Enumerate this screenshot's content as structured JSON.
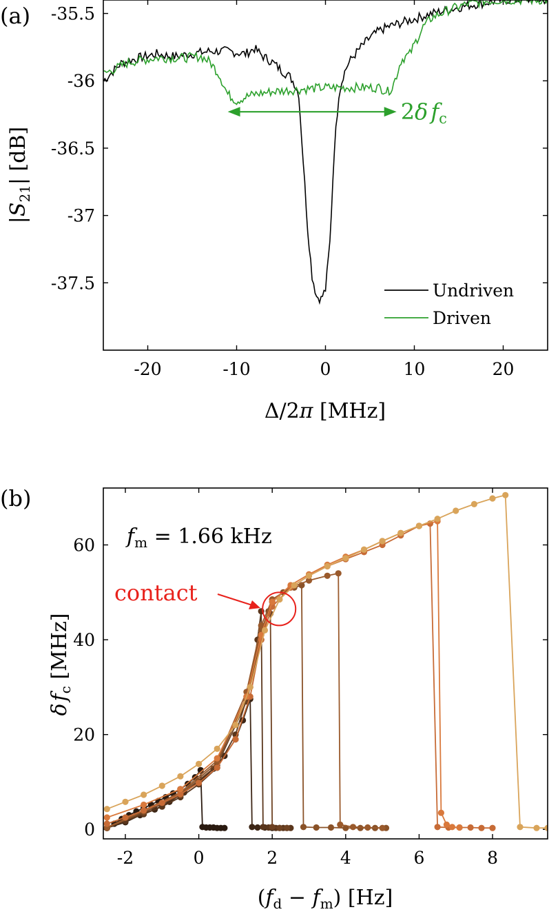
{
  "chart_data": [
    {
      "type": "line",
      "panel_label": "(a)",
      "xlabel_parts": [
        "Δ/2",
        "π",
        " [MHz]"
      ],
      "ylabel_parts": [
        "|",
        "S",
        "21",
        "| [dB]"
      ],
      "xlim": [
        -25,
        25
      ],
      "ylim": [
        -38,
        -35.4
      ],
      "xticks": [
        -20,
        -10,
        0,
        10,
        20
      ],
      "yticks": [
        -37.5,
        -37,
        -36.5,
        -36,
        -35.5
      ],
      "xtick_labels": [
        "-20",
        "-10",
        "0",
        "10",
        "20"
      ],
      "ytick_labels": [
        "-37.5",
        "-37",
        "-36.5",
        "-36",
        "-35.5"
      ],
      "grid": false,
      "legend_position": "bottom-right",
      "series": [
        {
          "name": "Undriven",
          "color": "#000000",
          "x": [
            -25,
            -23,
            -21,
            -19,
            -17,
            -15,
            -13,
            -11,
            -9,
            -8,
            -7,
            -6,
            -5,
            -4,
            -3.5,
            -3,
            -2.5,
            -2,
            -1.5,
            -1,
            -0.5,
            0,
            0.5,
            1,
            1.5,
            2,
            2.5,
            3,
            4,
            5,
            6,
            7,
            8,
            10,
            12,
            14,
            16,
            18,
            20,
            25
          ],
          "y": [
            -36.0,
            -35.87,
            -35.83,
            -35.8,
            -35.82,
            -35.8,
            -35.78,
            -35.78,
            -35.8,
            -35.76,
            -35.82,
            -35.86,
            -35.92,
            -35.97,
            -36.02,
            -36.1,
            -36.6,
            -37.1,
            -37.45,
            -37.6,
            -37.62,
            -37.55,
            -37.2,
            -36.5,
            -36.1,
            -35.96,
            -35.88,
            -35.83,
            -35.75,
            -35.68,
            -35.63,
            -35.6,
            -35.58,
            -35.54,
            -35.5,
            -35.47,
            -35.44,
            -35.42,
            -35.4,
            -35.4
          ]
        },
        {
          "name": "Driven",
          "color": "#2ca02c",
          "x": [
            -25,
            -22,
            -19,
            -16,
            -14,
            -13,
            -12,
            -11,
            -10,
            -9,
            -8,
            -6,
            -4,
            -2,
            0,
            2,
            4,
            6,
            7,
            7.5,
            8,
            8.5,
            9,
            9.5,
            10,
            11,
            12,
            14,
            16,
            18,
            20,
            25
          ],
          "y": [
            -35.95,
            -35.86,
            -35.83,
            -35.83,
            -35.82,
            -35.86,
            -35.95,
            -36.1,
            -36.15,
            -36.12,
            -36.1,
            -36.08,
            -36.07,
            -36.06,
            -36.05,
            -36.05,
            -36.05,
            -36.05,
            -36.08,
            -36.05,
            -35.96,
            -35.85,
            -35.82,
            -35.8,
            -35.73,
            -35.6,
            -35.53,
            -35.47,
            -35.43,
            -35.41,
            -35.4,
            -35.4
          ]
        }
      ],
      "annotation": {
        "text_parts": [
          "2",
          "δ",
          "f",
          "c"
        ],
        "color": "#2ca02c",
        "x_from": -11,
        "x_to": 8,
        "y": -36.23
      }
    },
    {
      "type": "line",
      "panel_label": "(b)",
      "xlabel_parts": [
        "(",
        "f",
        "d",
        " − ",
        "f",
        "m",
        ") [Hz]"
      ],
      "ylabel_parts": [
        "δ",
        "f",
        "c",
        " [MHz]"
      ],
      "xlim": [
        -2.6,
        9.5
      ],
      "ylim": [
        -2,
        72
      ],
      "xticks": [
        -2,
        0,
        2,
        4,
        6,
        8
      ],
      "yticks": [
        0,
        20,
        40,
        60
      ],
      "xtick_labels": [
        "-2",
        "0",
        "2",
        "4",
        "6",
        "8"
      ],
      "ytick_labels": [
        "0",
        "20",
        "40",
        "60"
      ],
      "grid": false,
      "inset_text_parts": [
        "f",
        "m",
        " = 1.66 kHz"
      ],
      "contact_annotation": {
        "text": "contact",
        "color": "#e8211b",
        "x": 1.85,
        "y": 46.5
      },
      "series": [
        {
          "color": "#2a1a10",
          "x": [
            -2.5,
            -2.3,
            -2.1,
            -1.9,
            -1.7,
            -1.5,
            -1.3,
            -1.1,
            -0.9,
            -0.7,
            -0.5,
            -0.3,
            -0.1,
            0.05,
            0.1,
            0.2,
            0.3,
            0.4,
            0.5,
            0.6,
            0.7
          ],
          "y": [
            0.3,
            1.2,
            2.2,
            3.0,
            3.8,
            4.5,
            5.2,
            6.0,
            6.8,
            7.6,
            8.5,
            9.6,
            11,
            12.5,
            0.5,
            0.4,
            0.4,
            0.4,
            0.3,
            0.3,
            0.3
          ]
        },
        {
          "color": "#3d2616",
          "x": [
            -2.5,
            -2.0,
            -1.6,
            -1.2,
            -0.8,
            -0.4,
            0.0,
            0.4,
            0.7,
            1.0,
            1.2,
            1.4,
            1.45,
            1.6,
            1.8,
            2.0,
            2.2,
            2.4
          ],
          "y": [
            0.3,
            1.5,
            3.0,
            4.2,
            5.8,
            7.8,
            10,
            12.8,
            15.5,
            19,
            23,
            27.5,
            0.5,
            0.4,
            0.4,
            0.3,
            0.3,
            0.3
          ]
        },
        {
          "color": "#5a361c",
          "x": [
            -2.5,
            -2.0,
            -1.5,
            -1.0,
            -0.5,
            0.0,
            0.5,
            1.0,
            1.4,
            1.6,
            1.7,
            1.75,
            1.9,
            2.1,
            2.3,
            2.5
          ],
          "y": [
            0.3,
            1.8,
            3.2,
            4.8,
            6.8,
            9.5,
            13,
            20,
            30,
            40,
            46,
            0.5,
            0.4,
            0.3,
            0.3,
            0.3
          ]
        },
        {
          "color": "#6e4222",
          "x": [
            -2.5,
            -1.5,
            -0.5,
            0.5,
            1.3,
            1.7,
            1.9,
            1.95,
            2.0,
            2.2,
            2.4
          ],
          "y": [
            0.3,
            3.5,
            7.2,
            13.5,
            27,
            40,
            46,
            45.5,
            0.5,
            0.3,
            0.3
          ]
        },
        {
          "color": "#8a5228",
          "x": [
            -2.5,
            -1.5,
            -0.5,
            0.5,
            1.3,
            1.7,
            2.0,
            2.3,
            2.6,
            2.8,
            2.85,
            3.2,
            3.6,
            4.0,
            4.4,
            4.8,
            5.1
          ],
          "y": [
            0.3,
            3.8,
            7.5,
            14,
            28,
            42,
            48,
            50,
            51,
            51.5,
            0.5,
            0.4,
            0.4,
            0.3,
            0.3,
            0.3,
            0.3
          ]
        },
        {
          "color": "#9a5a2c",
          "x": [
            -2.5,
            -1.5,
            -0.5,
            0.5,
            1.3,
            1.7,
            2.0,
            2.5,
            3.0,
            3.5,
            3.8,
            3.85,
            4.2,
            4.6,
            5.0
          ],
          "y": [
            0.4,
            4.0,
            7.8,
            14.5,
            29,
            43,
            48.5,
            51,
            52.5,
            53.5,
            54,
            1.0,
            0.5,
            0.4,
            0.3
          ]
        },
        {
          "color": "#c76b36",
          "x": [
            -2.5,
            -2.0,
            -1.5,
            -1.0,
            -0.5,
            0.0,
            0.5,
            1.0,
            1.4,
            1.7,
            2.0,
            2.5,
            3.0,
            3.5,
            4.0,
            4.5,
            5.0,
            5.5,
            6.0,
            6.3,
            6.5,
            6.8,
            7.1,
            7.4,
            7.7,
            8.0
          ],
          "y": [
            1.2,
            2.5,
            4.0,
            5.6,
            7.4,
            9.8,
            13,
            19,
            28,
            40,
            47,
            51,
            53.5,
            55.5,
            57,
            58.5,
            60,
            62,
            64,
            64.5,
            0.5,
            0.4,
            0.4,
            0.4,
            0.3,
            0.3
          ]
        },
        {
          "color": "#d9793c",
          "x": [
            -2.5,
            -1.5,
            -0.5,
            0.5,
            1.3,
            1.7,
            2.0,
            2.5,
            3.0,
            3.5,
            4.0,
            4.5,
            5.0,
            5.5,
            6.0,
            6.5,
            6.6,
            6.75,
            6.9,
            7.1
          ],
          "y": [
            2.5,
            5.2,
            8.5,
            15,
            28,
            41,
            48,
            51.5,
            53.8,
            55.8,
            57.5,
            59,
            60.8,
            62.5,
            64,
            65,
            3.5,
            1.0,
            0.5,
            0.4
          ]
        },
        {
          "color": "#d9a45a",
          "x": [
            -2.5,
            -2.0,
            -1.5,
            -1.0,
            -0.5,
            0.0,
            0.5,
            1.0,
            1.4,
            1.8,
            2.2,
            2.6,
            3.0,
            3.5,
            4.0,
            4.5,
            5.0,
            5.5,
            6.0,
            6.5,
            7.0,
            7.5,
            8.0,
            8.35,
            8.75,
            9.2,
            9.5
          ],
          "y": [
            4.3,
            5.8,
            7.3,
            9.2,
            11.2,
            13.8,
            17,
            22,
            30,
            42,
            48.5,
            51.5,
            53.5,
            55.5,
            57.2,
            59,
            60.8,
            62.5,
            64,
            65.5,
            67.2,
            68.6,
            69.8,
            70.5,
            0.5,
            0.3,
            0.3
          ]
        }
      ]
    }
  ]
}
